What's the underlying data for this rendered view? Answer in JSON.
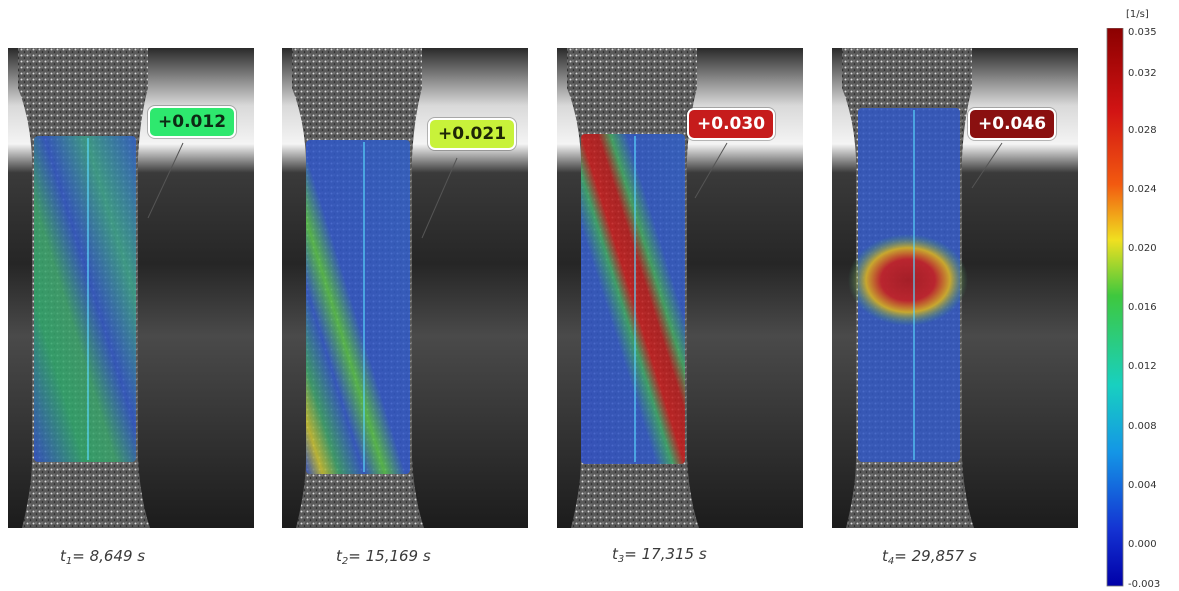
{
  "panels": [
    {
      "id": "p1",
      "value_label": "+0.012",
      "badge_color": "#2ee86e",
      "badge_text_color": "#0d2a14",
      "time_prefix": "t",
      "time_sub": "1",
      "time_value": "= 8,649 s",
      "band_level": 0.35
    },
    {
      "id": "p2",
      "value_label": "+0.021",
      "badge_color": "#c8f23a",
      "badge_text_color": "#1e2606",
      "time_prefix": "t",
      "time_sub": "2",
      "time_value": "= 15,169 s",
      "band_level": 0.6
    },
    {
      "id": "p3",
      "value_label": "+0.030",
      "badge_color": "#c61c1c",
      "badge_text_color": "#ffffff",
      "time_prefix": "t",
      "time_sub": "3",
      "time_value": "= 17,315 s",
      "band_level": 0.85
    },
    {
      "id": "p4",
      "value_label": "+0.046",
      "badge_color": "#8a1010",
      "badge_text_color": "#ffffff",
      "time_prefix": "t",
      "time_sub": "4",
      "time_value": "= 29,857 s",
      "band_level": 1.0
    }
  ],
  "colorbar": {
    "unit": "[1/s]",
    "ticks": [
      "0.035",
      "0.032",
      "0.028",
      "0.024",
      "0.020",
      "0.016",
      "0.012",
      "0.008",
      "0.004",
      "0.000",
      "-0.003"
    ],
    "colors": [
      "#8b0000",
      "#d21414",
      "#f25a10",
      "#f0e020",
      "#3ec83e",
      "#18d0c0",
      "#1496e6",
      "#1432d2",
      "#0000a8"
    ]
  }
}
